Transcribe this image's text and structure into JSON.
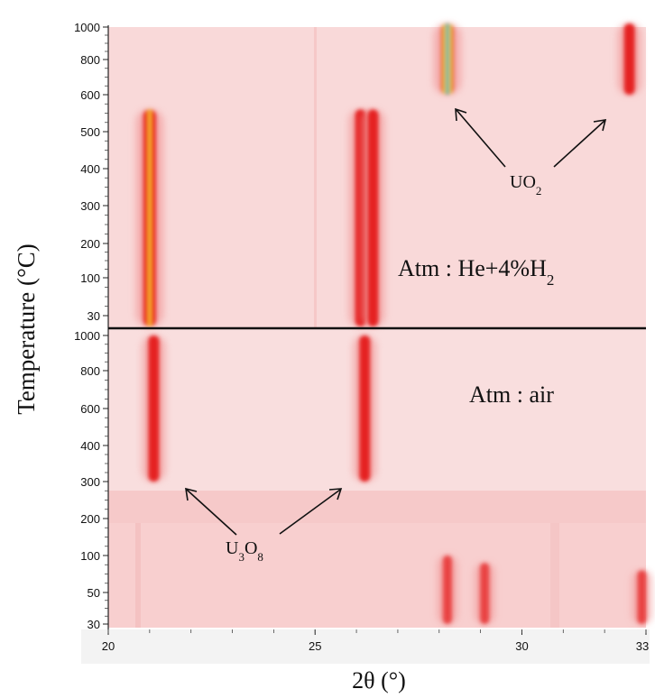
{
  "chart_data": {
    "type": "heatmap",
    "xlabel": "2θ (°)",
    "ylabel": "Temperature (°C)",
    "xlim": [
      20,
      33
    ],
    "x_ticks": [
      20,
      25,
      30,
      33
    ],
    "upper_panel": {
      "atmosphere_label": "Atm : He+4%H",
      "atmosphere_label_sub": "2",
      "y_ticks": [
        30,
        100,
        200,
        300,
        400,
        500,
        600,
        800,
        1000
      ],
      "phase_label": "UO",
      "phase_label_sub": "2",
      "peaks": [
        {
          "x": 21.0,
          "t_from": 30,
          "t_to": 560,
          "intensity": "very-high"
        },
        {
          "x": 26.1,
          "t_from": 30,
          "t_to": 560,
          "intensity": "high"
        },
        {
          "x": 26.4,
          "t_from": 30,
          "t_to": 560,
          "intensity": "high"
        },
        {
          "x": 28.2,
          "t_from": 600,
          "t_to": 1000,
          "intensity": "very-high"
        },
        {
          "x": 32.6,
          "t_from": 600,
          "t_to": 1000,
          "intensity": "high"
        }
      ]
    },
    "lower_panel": {
      "atmosphere_label": "Atm : air",
      "y_ticks": [
        30,
        50,
        100,
        200,
        300,
        400,
        600,
        800,
        1000
      ],
      "phase_label": "U",
      "phase_label_sub1": "3",
      "phase_label_mid": "O",
      "phase_label_sub2": "8",
      "peaks": [
        {
          "x": 21.1,
          "t_from": 300,
          "t_to": 1000,
          "intensity": "high"
        },
        {
          "x": 26.2,
          "t_from": 300,
          "t_to": 1000,
          "intensity": "high"
        },
        {
          "x": 28.2,
          "t_from": 30,
          "t_to": 100,
          "intensity": "medium"
        },
        {
          "x": 29.1,
          "t_from": 30,
          "t_to": 90,
          "intensity": "medium"
        },
        {
          "x": 32.9,
          "t_from": 30,
          "t_to": 80,
          "intensity": "medium"
        }
      ]
    }
  }
}
